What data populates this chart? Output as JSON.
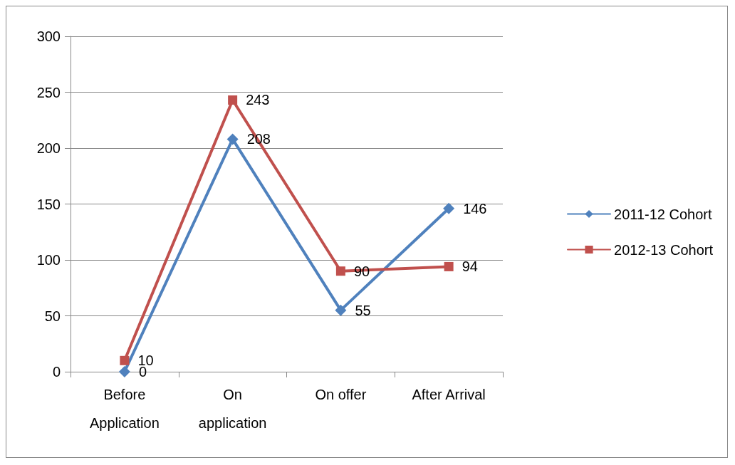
{
  "chart_data": {
    "type": "line",
    "categories": [
      "Before\nApplication",
      "On\napplication",
      "On offer",
      "After Arrival"
    ],
    "series": [
      {
        "name": "2011-12 Cohort",
        "color": "#4f81bd",
        "marker": "diamond",
        "values": [
          0,
          208,
          55,
          146
        ]
      },
      {
        "name": "2012-13 Cohort",
        "color": "#c0504d",
        "marker": "square",
        "values": [
          10,
          243,
          90,
          94
        ]
      }
    ],
    "ylim": [
      0,
      300
    ],
    "yticks": [
      0,
      50,
      100,
      150,
      200,
      250,
      300
    ],
    "grid": "y",
    "legend": "right",
    "data_labels": true,
    "line_style": "solid"
  }
}
